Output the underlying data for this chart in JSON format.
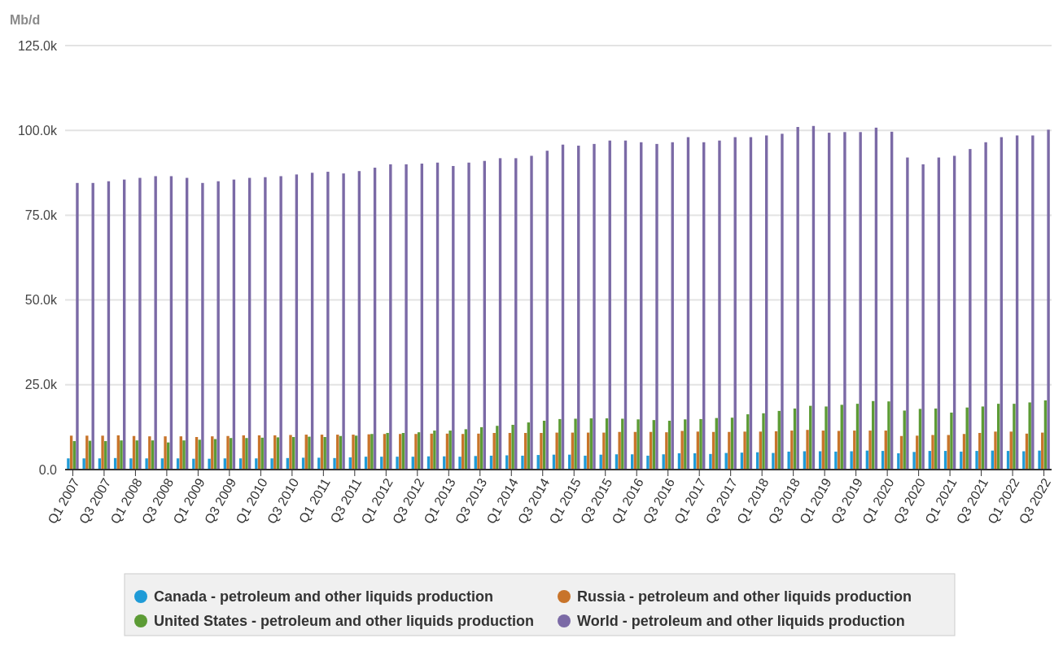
{
  "chart_data": {
    "type": "bar",
    "ylabel": "Mb/d",
    "categories": [
      "Q1 2007",
      null,
      "Q3 2007",
      null,
      "Q1 2008",
      null,
      "Q3 2008",
      null,
      "Q1 2009",
      null,
      "Q3 2009",
      null,
      "Q1 2010",
      null,
      "Q3 2010",
      null,
      "Q1 2011",
      null,
      "Q3 2011",
      null,
      "Q1 2012",
      null,
      "Q3 2012",
      null,
      "Q1 2013",
      null,
      "Q3 2013",
      null,
      "Q1 2014",
      null,
      "Q3 2014",
      null,
      "Q1 2015",
      null,
      "Q3 2015",
      null,
      "Q1 2016",
      null,
      "Q3 2016",
      null,
      "Q1 2017",
      null,
      "Q3 2017",
      null,
      "Q1 2018",
      null,
      "Q3 2018",
      null,
      "Q1 2019",
      null,
      "Q3 2019",
      null,
      "Q1 2020",
      null,
      "Q3 2020",
      null,
      "Q1 2021",
      null,
      "Q3 2021",
      null,
      "Q1 2022",
      null,
      "Q3 2022"
    ],
    "series": [
      {
        "name": "Canada - petroleum and other liquids production",
        "color": "#1f9bd7",
        "values": [
          3300,
          3300,
          3300,
          3400,
          3300,
          3300,
          3300,
          3300,
          3200,
          3200,
          3300,
          3300,
          3300,
          3300,
          3400,
          3500,
          3500,
          3400,
          3600,
          3800,
          3800,
          3800,
          3800,
          3900,
          3900,
          3800,
          4000,
          4100,
          4200,
          4100,
          4300,
          4400,
          4400,
          4100,
          4400,
          4500,
          4500,
          4100,
          4500,
          4800,
          4800,
          4600,
          4900,
          5000,
          5100,
          4900,
          5300,
          5400,
          5400,
          5300,
          5400,
          5600,
          5500,
          4800,
          5200,
          5500,
          5500,
          5300,
          5500,
          5600,
          5500,
          5400,
          5600
        ]
      },
      {
        "name": "Russia - petroleum and other liquids production",
        "color": "#c8742a",
        "values": [
          10000,
          10000,
          10000,
          10100,
          9900,
          9800,
          9800,
          9800,
          9600,
          9800,
          9900,
          10100,
          10100,
          10100,
          10200,
          10300,
          10300,
          10300,
          10300,
          10400,
          10500,
          10500,
          10500,
          10600,
          10600,
          10500,
          10600,
          10800,
          10800,
          10800,
          10800,
          10900,
          10900,
          10900,
          10900,
          11100,
          11100,
          11100,
          11000,
          11400,
          11200,
          11100,
          11100,
          11200,
          11200,
          11300,
          11500,
          11700,
          11500,
          11400,
          11500,
          11500,
          11500,
          9900,
          10000,
          10200,
          10200,
          10500,
          10800,
          11200,
          11200,
          10600,
          10900
        ]
      },
      {
        "name": "United States - petroleum and other liquids production",
        "color": "#5c9b35",
        "values": [
          8400,
          8500,
          8400,
          8600,
          8600,
          8600,
          8000,
          8600,
          8800,
          9000,
          9300,
          9300,
          9400,
          9500,
          9600,
          9700,
          9600,
          9900,
          10000,
          10500,
          10800,
          10800,
          11000,
          11500,
          11500,
          11900,
          12500,
          12900,
          13200,
          13900,
          14400,
          14900,
          15000,
          15100,
          15100,
          15000,
          14800,
          14600,
          14400,
          14800,
          14900,
          15200,
          15300,
          16300,
          16600,
          17300,
          18000,
          18800,
          18600,
          19100,
          19400,
          20200,
          20100,
          17400,
          17900,
          18000,
          16800,
          18300,
          18600,
          19400,
          19400,
          19800,
          20400
        ]
      },
      {
        "name": "World - petroleum and other liquids production",
        "color": "#7b6aa6",
        "values": [
          84500,
          84500,
          85000,
          85500,
          86000,
          86500,
          86500,
          86000,
          84500,
          85000,
          85500,
          86000,
          86200,
          86500,
          87000,
          87500,
          87800,
          87300,
          88000,
          89000,
          90000,
          90000,
          90200,
          90500,
          89500,
          90500,
          91000,
          91800,
          91800,
          92500,
          94000,
          95800,
          95500,
          96000,
          97000,
          97000,
          96500,
          96000,
          96500,
          98000,
          96500,
          97000,
          98000,
          98000,
          98500,
          99000,
          101000,
          101300,
          99300,
          99500,
          99500,
          100800,
          99600,
          92000,
          90000,
          92000,
          92500,
          94500,
          96500,
          98000,
          98500,
          98500,
          100200
        ]
      }
    ],
    "ylim": [
      0,
      125000
    ],
    "yticks": [
      {
        "value": 0,
        "label": "0.0"
      },
      {
        "value": 25000,
        "label": "25.0k"
      },
      {
        "value": 50000,
        "label": "50.0k"
      },
      {
        "value": 75000,
        "label": "75.0k"
      },
      {
        "value": 100000,
        "label": "100.0k"
      },
      {
        "value": 125000,
        "label": "125.0k"
      }
    ],
    "grid": "y",
    "legend": "bottom"
  }
}
